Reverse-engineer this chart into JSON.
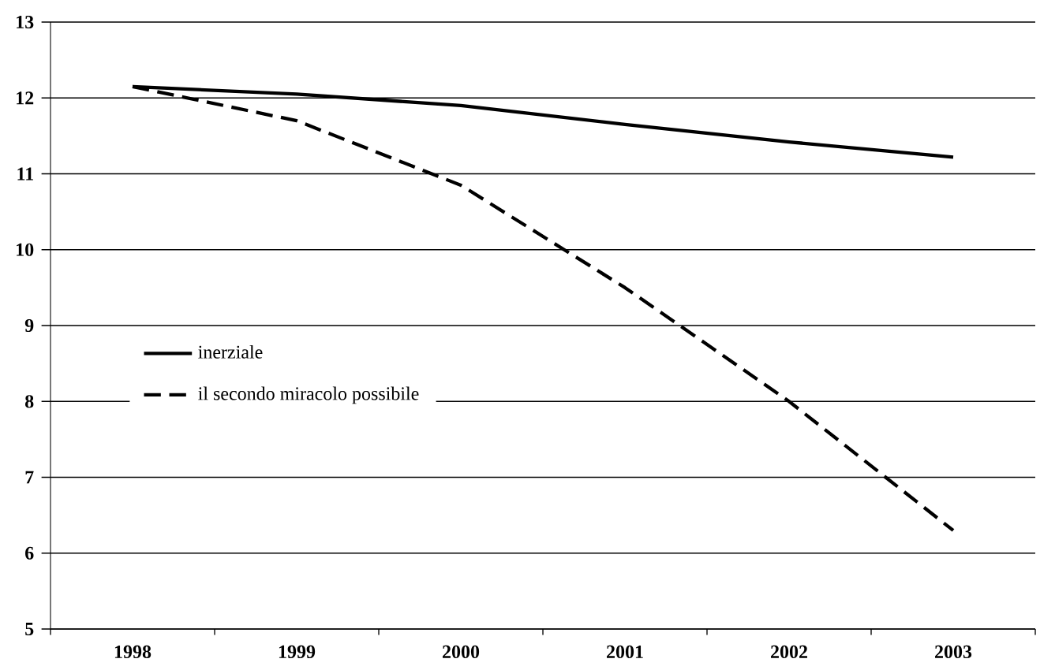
{
  "chart_data": {
    "type": "line",
    "categories": [
      "1998",
      "1999",
      "2000",
      "2001",
      "2002",
      "2003"
    ],
    "series": [
      {
        "name": "inerziale",
        "color": "#000000",
        "line_style": "solid",
        "values": [
          12.15,
          12.05,
          11.9,
          11.65,
          11.42,
          11.22
        ]
      },
      {
        "name": "il secondo miracolo possibile",
        "color": "#000000",
        "line_style": "dashed",
        "values": [
          12.15,
          11.7,
          10.85,
          9.5,
          8.0,
          6.3
        ]
      }
    ],
    "ylim": [
      5,
      13
    ],
    "yticks": [
      5,
      6,
      7,
      8,
      9,
      10,
      11,
      12,
      13
    ],
    "grid": "y",
    "legend": "left"
  }
}
